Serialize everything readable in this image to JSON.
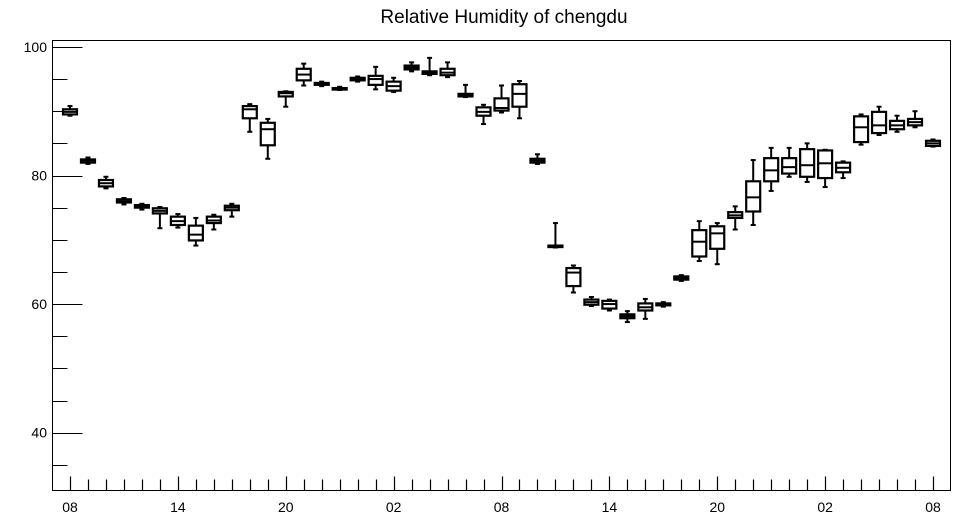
{
  "chart_data": {
    "type": "box",
    "title": "Relative Humidity of chengdu",
    "xlabel": "",
    "ylabel": "",
    "ylim": [
      31,
      101
    ],
    "y_ticks": [
      40,
      60,
      80,
      100
    ],
    "x_tick_labels": [
      "08",
      "14",
      "20",
      "02",
      "08",
      "14",
      "20",
      "02",
      "08"
    ],
    "x_range": [
      0,
      48
    ],
    "grid": false,
    "legend": "none",
    "boxes": [
      {
        "x": 0,
        "min": 89.3,
        "q1": 89.5,
        "median": 89.9,
        "q3": 90.3,
        "max": 90.8
      },
      {
        "x": 1,
        "min": 81.8,
        "q1": 82.0,
        "median": 82.3,
        "q3": 82.5,
        "max": 82.8
      },
      {
        "x": 2,
        "min": 78.0,
        "q1": 78.3,
        "median": 78.8,
        "q3": 79.3,
        "max": 79.8
      },
      {
        "x": 3,
        "min": 75.5,
        "q1": 75.8,
        "median": 76.0,
        "q3": 76.3,
        "max": 76.5
      },
      {
        "x": 4,
        "min": 74.7,
        "q1": 75.0,
        "median": 75.2,
        "q3": 75.4,
        "max": 75.6
      },
      {
        "x": 5,
        "min": 71.8,
        "q1": 74.1,
        "median": 74.5,
        "q3": 74.9,
        "max": 75.1
      },
      {
        "x": 6,
        "min": 71.9,
        "q1": 72.3,
        "median": 72.9,
        "q3": 73.6,
        "max": 74.0
      },
      {
        "x": 7,
        "min": 69.1,
        "q1": 69.9,
        "median": 70.8,
        "q3": 72.2,
        "max": 73.4
      },
      {
        "x": 8,
        "min": 71.6,
        "q1": 72.6,
        "median": 73.0,
        "q3": 73.6,
        "max": 73.9
      },
      {
        "x": 9,
        "min": 73.6,
        "q1": 74.6,
        "median": 75.0,
        "q3": 75.3,
        "max": 75.6
      },
      {
        "x": 10,
        "min": 86.8,
        "q1": 88.9,
        "median": 90.3,
        "q3": 90.8,
        "max": 91.1
      },
      {
        "x": 11,
        "min": 82.6,
        "q1": 84.7,
        "median": 87.2,
        "q3": 88.2,
        "max": 88.8
      },
      {
        "x": 12,
        "min": 90.7,
        "q1": 92.3,
        "median": 92.8,
        "q3": 93.0,
        "max": 93.1
      },
      {
        "x": 13,
        "min": 94.0,
        "q1": 94.8,
        "median": 95.7,
        "q3": 96.6,
        "max": 97.4
      },
      {
        "x": 14,
        "min": 93.9,
        "q1": 94.1,
        "median": 94.3,
        "q3": 94.4,
        "max": 94.6
      },
      {
        "x": 15,
        "min": 93.3,
        "q1": 93.4,
        "median": 93.5,
        "q3": 93.6,
        "max": 93.8
      },
      {
        "x": 16,
        "min": 94.6,
        "q1": 94.8,
        "median": 95.0,
        "q3": 95.2,
        "max": 95.4
      },
      {
        "x": 17,
        "min": 93.4,
        "q1": 94.1,
        "median": 95.0,
        "q3": 95.5,
        "max": 96.9
      },
      {
        "x": 18,
        "min": 93.0,
        "q1": 93.2,
        "median": 93.9,
        "q3": 94.6,
        "max": 95.2
      },
      {
        "x": 19,
        "min": 96.2,
        "q1": 96.5,
        "median": 96.8,
        "q3": 97.1,
        "max": 97.6
      },
      {
        "x": 20,
        "min": 95.6,
        "q1": 95.8,
        "median": 96.0,
        "q3": 96.2,
        "max": 98.3
      },
      {
        "x": 21,
        "min": 95.3,
        "q1": 95.6,
        "median": 96.0,
        "q3": 96.6,
        "max": 97.6
      },
      {
        "x": 22,
        "min": 92.2,
        "q1": 92.3,
        "median": 92.5,
        "q3": 92.7,
        "max": 94.1
      },
      {
        "x": 23,
        "min": 88.0,
        "q1": 89.3,
        "median": 89.9,
        "q3": 90.6,
        "max": 91.0
      },
      {
        "x": 24,
        "min": 89.8,
        "q1": 90.1,
        "median": 90.5,
        "q3": 92.0,
        "max": 94.0
      },
      {
        "x": 25,
        "min": 88.9,
        "q1": 90.7,
        "median": 92.7,
        "q3": 94.2,
        "max": 94.7
      },
      {
        "x": 26,
        "min": 81.8,
        "q1": 82.0,
        "median": 82.3,
        "q3": 82.6,
        "max": 83.3
      },
      {
        "x": 27,
        "min": 68.8,
        "q1": 68.9,
        "median": 69.0,
        "q3": 69.1,
        "max": 72.6
      },
      {
        "x": 28,
        "min": 61.8,
        "q1": 62.8,
        "median": 64.9,
        "q3": 65.6,
        "max": 66.0
      },
      {
        "x": 29,
        "min": 59.7,
        "q1": 59.9,
        "median": 60.3,
        "q3": 60.7,
        "max": 61.1
      },
      {
        "x": 30,
        "min": 59.0,
        "q1": 59.3,
        "median": 60.0,
        "q3": 60.5,
        "max": 60.7
      },
      {
        "x": 31,
        "min": 57.2,
        "q1": 57.8,
        "median": 58.1,
        "q3": 58.4,
        "max": 58.9
      },
      {
        "x": 32,
        "min": 57.7,
        "q1": 59.0,
        "median": 59.5,
        "q3": 60.1,
        "max": 60.8
      },
      {
        "x": 33,
        "min": 59.6,
        "q1": 59.8,
        "median": 60.0,
        "q3": 60.1,
        "max": 60.3
      },
      {
        "x": 34,
        "min": 63.6,
        "q1": 63.8,
        "median": 64.0,
        "q3": 64.3,
        "max": 64.5
      },
      {
        "x": 35,
        "min": 66.7,
        "q1": 67.4,
        "median": 69.7,
        "q3": 71.5,
        "max": 72.9
      },
      {
        "x": 36,
        "min": 66.2,
        "q1": 68.6,
        "median": 71.0,
        "q3": 72.1,
        "max": 72.6
      },
      {
        "x": 37,
        "min": 71.6,
        "q1": 73.4,
        "median": 73.8,
        "q3": 74.3,
        "max": 75.2
      },
      {
        "x": 38,
        "min": 72.3,
        "q1": 74.4,
        "median": 76.6,
        "q3": 79.1,
        "max": 82.4
      },
      {
        "x": 39,
        "min": 77.6,
        "q1": 79.1,
        "median": 80.8,
        "q3": 82.7,
        "max": 84.3
      },
      {
        "x": 40,
        "min": 79.8,
        "q1": 80.3,
        "median": 81.3,
        "q3": 82.7,
        "max": 84.3
      },
      {
        "x": 41,
        "min": 79.0,
        "q1": 79.8,
        "median": 81.6,
        "q3": 84.1,
        "max": 85.0
      },
      {
        "x": 42,
        "min": 78.2,
        "q1": 79.6,
        "median": 81.9,
        "q3": 83.9,
        "max": 84.0
      },
      {
        "x": 43,
        "min": 79.6,
        "q1": 80.5,
        "median": 81.2,
        "q3": 82.0,
        "max": 82.2
      },
      {
        "x": 44,
        "min": 84.8,
        "q1": 85.2,
        "median": 87.5,
        "q3": 89.2,
        "max": 89.5
      },
      {
        "x": 45,
        "min": 86.3,
        "q1": 86.6,
        "median": 87.8,
        "q3": 89.9,
        "max": 90.7
      },
      {
        "x": 46,
        "min": 86.8,
        "q1": 87.2,
        "median": 87.8,
        "q3": 88.5,
        "max": 89.3
      },
      {
        "x": 47,
        "min": 87.5,
        "q1": 87.8,
        "median": 88.3,
        "q3": 88.8,
        "max": 90.0
      },
      {
        "x": 48,
        "min": 84.5,
        "q1": 84.6,
        "median": 85.0,
        "q3": 85.4,
        "max": 85.6
      }
    ]
  }
}
